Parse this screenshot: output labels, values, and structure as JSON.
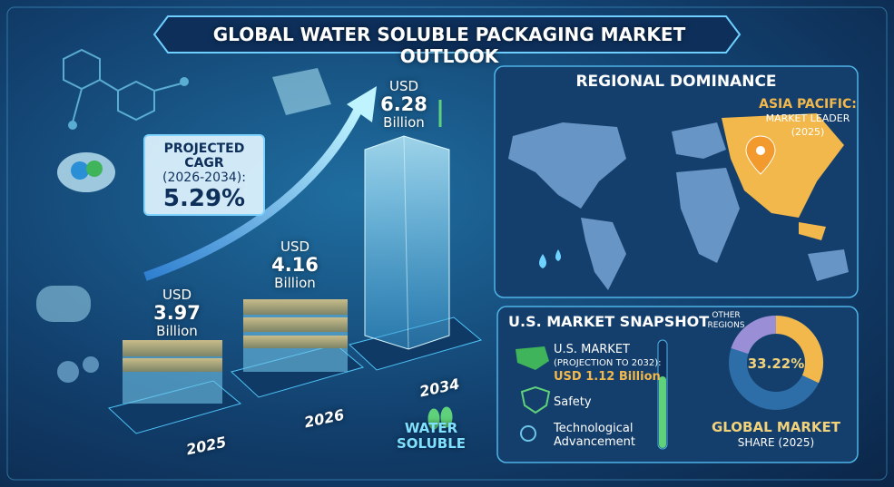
{
  "title": "GLOBAL WATER SOLUBLE PACKAGING MARKET OUTLOOK",
  "cagr": {
    "label": "PROJECTED CAGR",
    "period": "(2026-2034):",
    "value": "5.29%"
  },
  "market": [
    {
      "currency": "USD",
      "value": "3.97",
      "unit": "Billion",
      "year": "2025"
    },
    {
      "currency": "USD",
      "value": "4.16",
      "unit": "Billion",
      "year": "2026"
    },
    {
      "currency": "USD",
      "value": "6.28",
      "unit": "Billion",
      "year": "2034"
    }
  ],
  "badge": [
    "WATER",
    "SOLUBLE"
  ],
  "regional": {
    "title": "REGIONAL DOMINANCE",
    "leader": "ASIA PACIFIC:",
    "note": "MARKET LEADER",
    "year": "(2025)"
  },
  "us": {
    "title": "U.S. MARKET SNAPSHOT",
    "market": "U.S. MARKET",
    "projection": "(PROJECTION TO 2032):",
    "value": "USD 1.12 Billion",
    "features": [
      "Safety",
      "Technological Advancement"
    ]
  },
  "share": {
    "other": [
      "OTHER",
      "REGIONS"
    ],
    "value": "33.22%",
    "label": "GLOBAL MARKET",
    "sub": "SHARE (2025)"
  }
}
